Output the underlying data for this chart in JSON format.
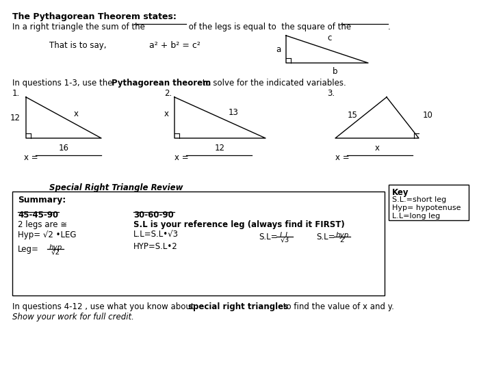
{
  "bg_color": "#ffffff",
  "title_bold": "The Pythagorean Theorem states:",
  "angle1_label": "45-45-90",
  "angle1_line1": "2 legs are ≅",
  "angle1_line2": "Hyp= √2 •LEG",
  "angle2_label": "30-60-90",
  "angle2_line1": "S.L is your reference leg (always find it FIRST)",
  "angle2_line2": "L.L=S.L•√3",
  "angle2_line3": "HYP=S.L•2",
  "key_title": "Key",
  "key_line1": "S.L.=short leg",
  "key_line2": "Hyp= hypotenuse",
  "key_line3": "L.L=long leg",
  "special_title": "Special Right Triangle Review",
  "summary_label": "Summary:"
}
